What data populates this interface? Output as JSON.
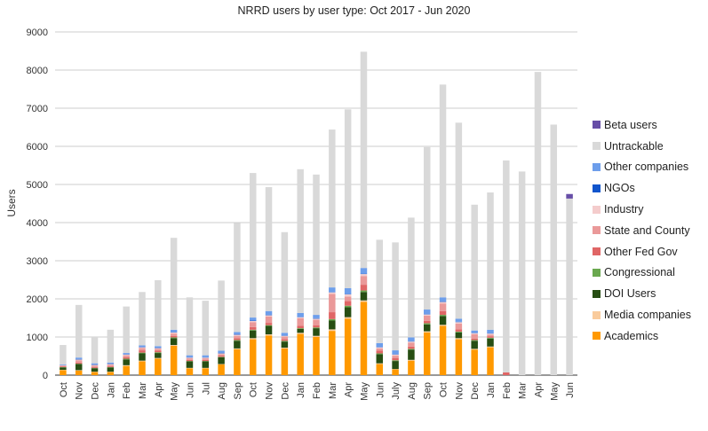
{
  "chart_data": {
    "type": "bar",
    "stacked": true,
    "title": "NRRD users by user type: Oct 2017 - Jun 2020",
    "xlabel": "",
    "ylabel": "Users",
    "ylim": [
      0,
      9000
    ],
    "yticks": [
      0,
      1000,
      2000,
      3000,
      4000,
      5000,
      6000,
      7000,
      8000,
      9000
    ],
    "grid": true,
    "legend_position": "right",
    "categories": [
      "Oct",
      "Nov",
      "Dec",
      "Jan",
      "Feb",
      "Mar",
      "Apr",
      "May",
      "Jun",
      "Jul",
      "Aug",
      "Sep",
      "Oct",
      "Nov",
      "Dec",
      "Jan",
      "Feb",
      "Mar",
      "Apr",
      "May",
      "Jun",
      "July",
      "Aug",
      "Sep",
      "Oct",
      "Nov",
      "Dec",
      "Jan",
      "Feb",
      "Mar",
      "Apr",
      "May",
      "Jun"
    ],
    "series": [
      {
        "name": "Academics",
        "color": "#ff9900",
        "values": [
          130,
          120,
          80,
          80,
          240,
          360,
          430,
          770,
          180,
          180,
          280,
          680,
          940,
          1040,
          700,
          1080,
          1000,
          1160,
          1480,
          1920,
          290,
          150,
          380,
          1120,
          1290,
          940,
          670,
          730,
          0,
          0,
          0,
          0,
          0
        ]
      },
      {
        "name": "Media companies",
        "color": "#f9cb9c",
        "values": [
          10,
          10,
          10,
          10,
          20,
          20,
          20,
          20,
          10,
          10,
          10,
          20,
          30,
          30,
          20,
          30,
          30,
          40,
          40,
          40,
          20,
          10,
          20,
          30,
          30,
          30,
          20,
          20,
          0,
          0,
          0,
          0,
          0
        ]
      },
      {
        "name": "DOI Users",
        "color": "#274e13",
        "values": [
          60,
          160,
          90,
          110,
          150,
          190,
          130,
          180,
          170,
          170,
          180,
          200,
          200,
          220,
          160,
          100,
          200,
          230,
          260,
          220,
          240,
          210,
          270,
          180,
          230,
          150,
          210,
          210,
          0,
          0,
          0,
          0,
          0
        ]
      },
      {
        "name": "Congressional",
        "color": "#6aa84f",
        "values": [
          10,
          10,
          10,
          10,
          20,
          20,
          20,
          20,
          10,
          10,
          10,
          20,
          20,
          20,
          20,
          20,
          20,
          40,
          40,
          40,
          20,
          20,
          20,
          30,
          30,
          20,
          20,
          20,
          0,
          0,
          0,
          0,
          0
        ]
      },
      {
        "name": "Other Fed Gov",
        "color": "#e06666",
        "values": [
          20,
          30,
          20,
          20,
          40,
          60,
          40,
          40,
          30,
          30,
          30,
          50,
          70,
          60,
          40,
          60,
          60,
          180,
          120,
          150,
          70,
          60,
          60,
          60,
          100,
          60,
          40,
          40,
          70,
          0,
          0,
          0,
          0
        ]
      },
      {
        "name": "State and County",
        "color": "#ea9999",
        "values": [
          20,
          60,
          40,
          40,
          50,
          60,
          50,
          60,
          40,
          40,
          40,
          60,
          130,
          170,
          70,
          200,
          140,
          480,
          120,
          230,
          60,
          60,
          100,
          140,
          200,
          150,
          110,
          40,
          0,
          0,
          0,
          0,
          0
        ]
      },
      {
        "name": "Industry",
        "color": "#f4cccc",
        "values": [
          10,
          20,
          20,
          20,
          20,
          20,
          20,
          30,
          20,
          20,
          20,
          30,
          30,
          30,
          20,
          30,
          30,
          40,
          60,
          50,
          30,
          30,
          30,
          30,
          40,
          40,
          30,
          30,
          0,
          0,
          0,
          0,
          0
        ]
      },
      {
        "name": "NGOs",
        "color": "#1155cc",
        "values": [
          0,
          10,
          10,
          10,
          10,
          10,
          10,
          10,
          10,
          10,
          10,
          10,
          10,
          10,
          10,
          10,
          10,
          10,
          10,
          10,
          10,
          10,
          10,
          10,
          10,
          10,
          10,
          10,
          0,
          0,
          0,
          0,
          0
        ]
      },
      {
        "name": "Other companies",
        "color": "#6d9eeb",
        "values": [
          20,
          40,
          30,
          30,
          30,
          40,
          40,
          60,
          50,
          50,
          60,
          60,
          80,
          100,
          70,
          100,
          90,
          120,
          150,
          150,
          100,
          100,
          100,
          120,
          110,
          80,
          60,
          90,
          0,
          0,
          0,
          0,
          0
        ]
      },
      {
        "name": "Untrackable",
        "color": "#d9d9d9",
        "values": [
          510,
          1380,
          690,
          860,
          1220,
          1400,
          1730,
          2410,
          1520,
          1430,
          1840,
          2860,
          3790,
          3250,
          2640,
          3770,
          3680,
          4140,
          4690,
          5670,
          2710,
          2830,
          3140,
          4260,
          5580,
          5140,
          3300,
          3600,
          5560,
          5340,
          7950,
          6570,
          4630
        ]
      },
      {
        "name": "Beta users",
        "color": "#674ea7",
        "values": [
          0,
          0,
          0,
          0,
          0,
          0,
          0,
          0,
          0,
          0,
          0,
          0,
          0,
          0,
          0,
          0,
          0,
          0,
          0,
          0,
          0,
          0,
          0,
          0,
          0,
          0,
          0,
          0,
          0,
          0,
          0,
          0,
          120
        ]
      }
    ],
    "legend_order": [
      "Beta users",
      "Untrackable",
      "Other companies",
      "NGOs",
      "Industry",
      "State and County",
      "Other Fed Gov",
      "Congressional",
      "DOI Users",
      "Media companies",
      "Academics"
    ]
  }
}
